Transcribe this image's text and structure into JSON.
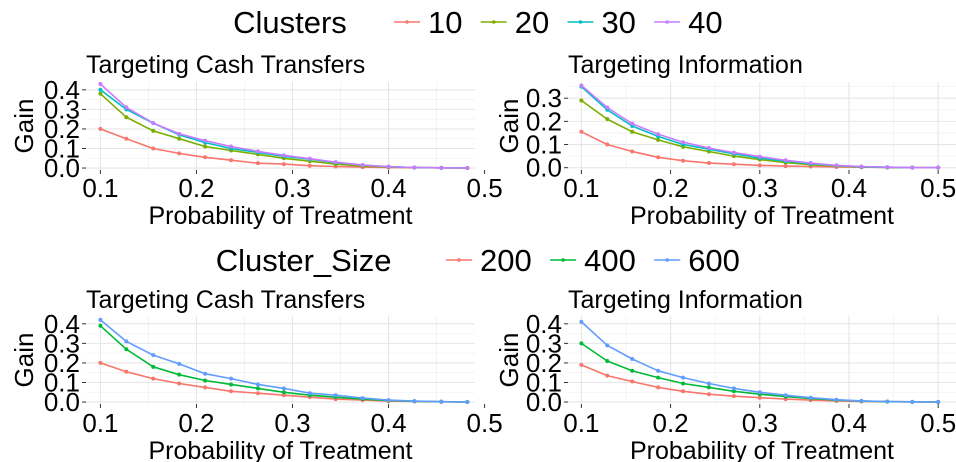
{
  "legends": [
    {
      "title": "Clusters",
      "entries": [
        "10",
        "20",
        "30",
        "40"
      ],
      "colors": [
        "#F8766D",
        "#7CAE00",
        "#00BFC4",
        "#C77CFF"
      ]
    },
    {
      "title": "Cluster_Size",
      "entries": [
        "200",
        "400",
        "600"
      ],
      "colors": [
        "#F8766D",
        "#00BA38",
        "#619CFF"
      ]
    }
  ],
  "chart_data": [
    {
      "type": "line",
      "title": "Targeting Cash Transfers",
      "xlabel": "Probability of Treatment",
      "ylabel": "Gain",
      "xlim": [
        0.085,
        0.49
      ],
      "ylim": [
        -0.01,
        0.44
      ],
      "xticks": [
        "0.1",
        "0.2",
        "0.3",
        "0.4",
        "0.5"
      ],
      "yticks": [
        "0.0",
        "0.1",
        "0.2",
        "0.3",
        "0.4"
      ],
      "x": [
        0.1,
        0.127,
        0.155,
        0.182,
        0.209,
        0.236,
        0.264,
        0.291,
        0.318,
        0.345,
        0.373,
        0.4,
        0.427,
        0.455,
        0.482
      ],
      "series": [
        {
          "name": "10",
          "color": "#F8766D",
          "values": [
            0.2,
            0.15,
            0.1,
            0.075,
            0.055,
            0.04,
            0.025,
            0.02,
            0.012,
            0.008,
            0.005,
            0.003,
            0.002,
            0.001,
            0.0
          ]
        },
        {
          "name": "20",
          "color": "#7CAE00",
          "values": [
            0.38,
            0.26,
            0.19,
            0.15,
            0.11,
            0.09,
            0.07,
            0.05,
            0.035,
            0.02,
            0.01,
            0.005,
            0.003,
            0.001,
            0.0
          ]
        },
        {
          "name": "30",
          "color": "#00BFC4",
          "values": [
            0.4,
            0.3,
            0.23,
            0.17,
            0.13,
            0.1,
            0.08,
            0.06,
            0.045,
            0.028,
            0.015,
            0.007,
            0.003,
            0.001,
            0.0
          ]
        },
        {
          "name": "40",
          "color": "#C77CFF",
          "values": [
            0.43,
            0.31,
            0.23,
            0.175,
            0.14,
            0.11,
            0.085,
            0.065,
            0.048,
            0.03,
            0.015,
            0.007,
            0.003,
            0.001,
            0.0
          ]
        }
      ]
    },
    {
      "type": "line",
      "title": "Targeting Information",
      "xlabel": "Probability of Treatment",
      "ylabel": "Gain",
      "xlim": [
        0.085,
        0.52
      ],
      "ylim": [
        -0.01,
        0.37
      ],
      "xticks": [
        "0.1",
        "0.2",
        "0.3",
        "0.4",
        "0.5"
      ],
      "yticks": [
        "0.0",
        "0.1",
        "0.2",
        "0.3"
      ],
      "x": [
        0.1,
        0.129,
        0.157,
        0.186,
        0.214,
        0.243,
        0.271,
        0.3,
        0.329,
        0.357,
        0.386,
        0.414,
        0.443,
        0.471,
        0.5
      ],
      "series": [
        {
          "name": "10",
          "color": "#F8766D",
          "values": [
            0.155,
            0.1,
            0.07,
            0.045,
            0.03,
            0.02,
            0.015,
            0.01,
            0.007,
            0.005,
            0.003,
            0.002,
            0.001,
            0.0,
            0.0
          ]
        },
        {
          "name": "20",
          "color": "#7CAE00",
          "values": [
            0.29,
            0.21,
            0.155,
            0.12,
            0.09,
            0.07,
            0.05,
            0.035,
            0.022,
            0.013,
            0.007,
            0.003,
            0.001,
            0.0,
            0.0
          ]
        },
        {
          "name": "30",
          "color": "#00BFC4",
          "values": [
            0.35,
            0.25,
            0.18,
            0.135,
            0.1,
            0.08,
            0.06,
            0.042,
            0.028,
            0.017,
            0.009,
            0.004,
            0.002,
            0.0,
            0.0
          ]
        },
        {
          "name": "40",
          "color": "#C77CFF",
          "values": [
            0.355,
            0.26,
            0.19,
            0.145,
            0.11,
            0.085,
            0.065,
            0.048,
            0.032,
            0.02,
            0.01,
            0.005,
            0.002,
            0.0,
            0.0
          ]
        }
      ]
    },
    {
      "type": "line",
      "title": "Targeting Cash Transfers",
      "xlabel": "Probability of Treatment",
      "ylabel": "Gain",
      "xlim": [
        0.085,
        0.49
      ],
      "ylim": [
        -0.01,
        0.44
      ],
      "xticks": [
        "0.1",
        "0.2",
        "0.3",
        "0.4",
        "0.5"
      ],
      "yticks": [
        "0.0",
        "0.1",
        "0.2",
        "0.3",
        "0.4"
      ],
      "x": [
        0.1,
        0.127,
        0.155,
        0.182,
        0.209,
        0.236,
        0.264,
        0.291,
        0.318,
        0.345,
        0.373,
        0.4,
        0.427,
        0.455,
        0.482
      ],
      "series": [
        {
          "name": "200",
          "color": "#F8766D",
          "values": [
            0.2,
            0.155,
            0.12,
            0.095,
            0.075,
            0.055,
            0.045,
            0.035,
            0.025,
            0.015,
            0.01,
            0.005,
            0.003,
            0.001,
            0.0
          ]
        },
        {
          "name": "400",
          "color": "#00BA38",
          "values": [
            0.39,
            0.27,
            0.18,
            0.14,
            0.11,
            0.09,
            0.07,
            0.05,
            0.035,
            0.025,
            0.015,
            0.008,
            0.004,
            0.002,
            0.0
          ]
        },
        {
          "name": "600",
          "color": "#619CFF",
          "values": [
            0.42,
            0.31,
            0.24,
            0.195,
            0.145,
            0.12,
            0.09,
            0.07,
            0.045,
            0.035,
            0.02,
            0.01,
            0.005,
            0.002,
            0.0
          ]
        }
      ]
    },
    {
      "type": "line",
      "title": "Targeting Information",
      "xlabel": "Probability of Treatment",
      "ylabel": "Gain",
      "xlim": [
        0.085,
        0.52
      ],
      "ylim": [
        -0.01,
        0.44
      ],
      "xticks": [
        "0.1",
        "0.2",
        "0.3",
        "0.4",
        "0.5"
      ],
      "yticks": [
        "0.0",
        "0.1",
        "0.2",
        "0.3",
        "0.4"
      ],
      "x": [
        0.1,
        0.129,
        0.157,
        0.186,
        0.214,
        0.243,
        0.271,
        0.3,
        0.329,
        0.357,
        0.386,
        0.414,
        0.443,
        0.471,
        0.5
      ],
      "series": [
        {
          "name": "200",
          "color": "#F8766D",
          "values": [
            0.19,
            0.135,
            0.105,
            0.075,
            0.055,
            0.04,
            0.03,
            0.022,
            0.015,
            0.01,
            0.006,
            0.003,
            0.002,
            0.001,
            0.0
          ]
        },
        {
          "name": "400",
          "color": "#00BA38",
          "values": [
            0.3,
            0.21,
            0.16,
            0.125,
            0.095,
            0.075,
            0.055,
            0.04,
            0.028,
            0.018,
            0.01,
            0.005,
            0.002,
            0.001,
            0.0
          ]
        },
        {
          "name": "600",
          "color": "#619CFF",
          "values": [
            0.41,
            0.29,
            0.22,
            0.16,
            0.125,
            0.095,
            0.07,
            0.05,
            0.035,
            0.022,
            0.012,
            0.006,
            0.003,
            0.001,
            0.0
          ]
        }
      ]
    }
  ]
}
